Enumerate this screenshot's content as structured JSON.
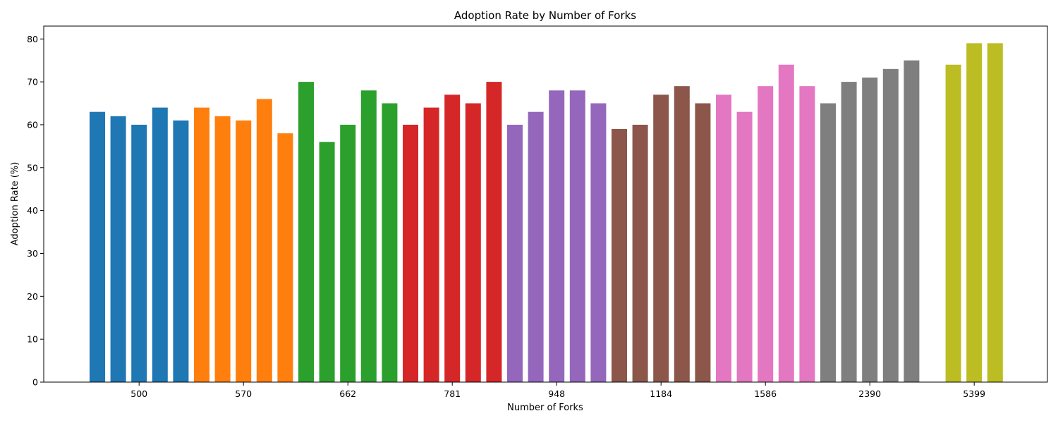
{
  "chart_data": {
    "type": "bar",
    "title": "Adoption Rate by Number of Forks",
    "xlabel": "Number of Forks",
    "ylabel": "Adoption Rate (%)",
    "ylim": [
      0,
      83
    ],
    "yticks": [
      0,
      10,
      20,
      30,
      40,
      50,
      60,
      70,
      80
    ],
    "grid": false,
    "legend": "none",
    "groups": [
      {
        "tick_label": "500",
        "color": "#1f77b4",
        "values": [
          63,
          62,
          60,
          64,
          61
        ]
      },
      {
        "tick_label": "570",
        "color": "#ff7f0e",
        "values": [
          64,
          62,
          61,
          66,
          58
        ]
      },
      {
        "tick_label": "662",
        "color": "#2ca02c",
        "values": [
          70,
          56,
          60,
          68,
          65
        ]
      },
      {
        "tick_label": "781",
        "color": "#d62728",
        "values": [
          60,
          64,
          67,
          65,
          70
        ]
      },
      {
        "tick_label": "948",
        "color": "#9467bd",
        "values": [
          60,
          63,
          68,
          68,
          65
        ]
      },
      {
        "tick_label": "1184",
        "color": "#8c564b",
        "values": [
          59,
          60,
          67,
          69,
          65
        ]
      },
      {
        "tick_label": "1586",
        "color": "#e377c2",
        "values": [
          67,
          63,
          69,
          74,
          69
        ]
      },
      {
        "tick_label": "2390",
        "color": "#7f7f7f",
        "values": [
          65,
          70,
          71,
          73,
          75
        ]
      },
      {
        "tick_label": "5399",
        "color": "#bcbd22",
        "values": [
          74,
          79,
          79
        ]
      }
    ]
  }
}
